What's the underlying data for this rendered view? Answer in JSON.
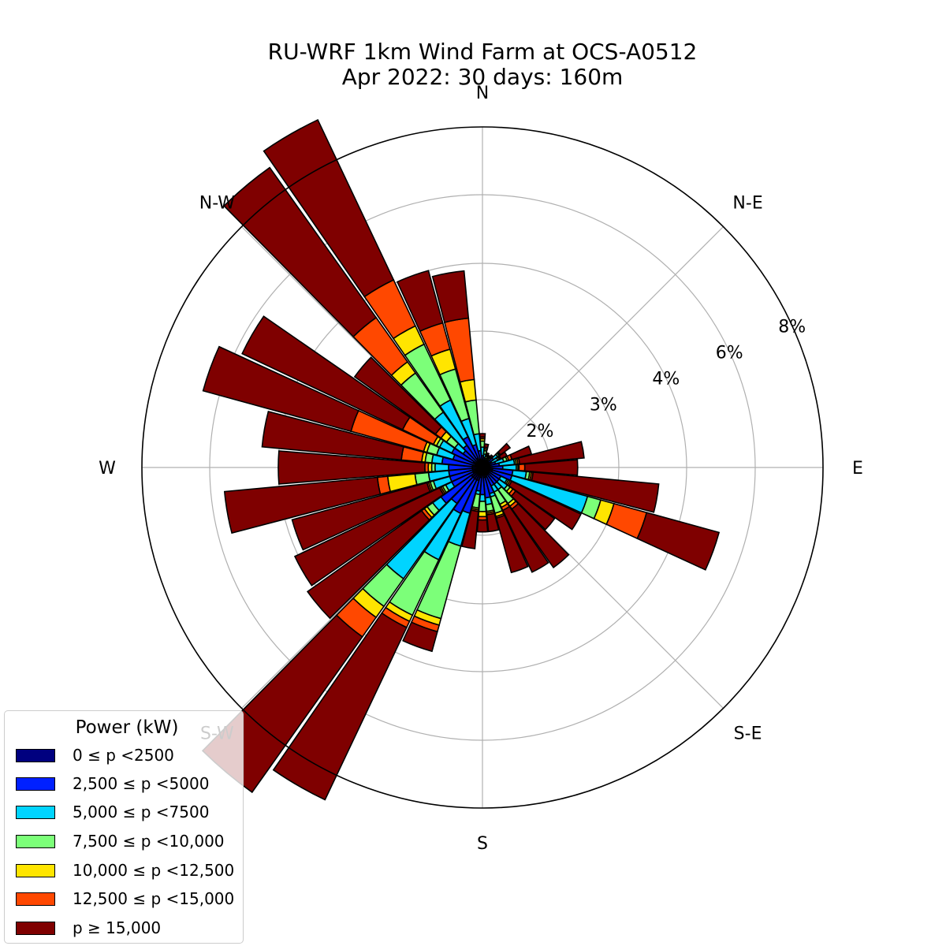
{
  "title_line1": "RU-WRF 1km Wind Farm at OCS-A0512",
  "title_line2": "Apr 2022: 30 days: 160m",
  "chart_data": {
    "type": "windrose",
    "direction_labels": [
      "N",
      "N-E",
      "E",
      "S-E",
      "S",
      "S-W",
      "W",
      "N-W"
    ],
    "radial_tick_labels": [
      "2%",
      "3%",
      "4%",
      "6%",
      "8%"
    ],
    "legend": {
      "title": "Power (kW)",
      "entries": [
        {
          "label": "0 ≤  p <2500",
          "color": "#00007f"
        },
        {
          "label": "2,500 ≤  p <5000",
          "color": "#0020ff"
        },
        {
          "label": "5,000 ≤  p <7500",
          "color": "#00d4ff"
        },
        {
          "label": "7,500 ≤  p <10,000",
          "color": "#7cff79"
        },
        {
          "label": "10,000 ≤  p <12,500",
          "color": "#ffe500"
        },
        {
          "label": "12,500 ≤  p <15,000",
          "color": "#ff4800"
        },
        {
          "label": "p  ≥ 15,000",
          "color": "#7f0000"
        }
      ]
    },
    "bin_width_deg": 10,
    "sectors": [
      {
        "direction": 0,
        "cumulative": [
          0.08,
          0.35,
          0.6,
          0.78,
          0.85,
          0.9,
          1.0
        ]
      },
      {
        "direction": 10,
        "cumulative": [
          0.1,
          0.3,
          0.4,
          0.5,
          0.55,
          0.6,
          0.7
        ]
      },
      {
        "direction": 20,
        "cumulative": [
          0.08,
          0.2,
          0.28,
          0.35,
          0.38,
          0.4,
          0.45
        ]
      },
      {
        "direction": 30,
        "cumulative": [
          0.08,
          0.18,
          0.25,
          0.3,
          0.33,
          0.36,
          0.4
        ]
      },
      {
        "direction": 40,
        "cumulative": [
          0.1,
          0.25,
          0.3,
          0.35,
          0.38,
          0.4,
          0.45
        ]
      },
      {
        "direction": 50,
        "cumulative": [
          0.1,
          0.4,
          0.55,
          0.6,
          0.63,
          0.65,
          1.0
        ]
      },
      {
        "direction": 60,
        "cumulative": [
          0.1,
          0.3,
          0.5,
          0.55,
          0.58,
          0.6,
          0.8
        ]
      },
      {
        "direction": 70,
        "cumulative": [
          0.15,
          0.4,
          0.65,
          0.75,
          0.8,
          0.9,
          1.5
        ]
      },
      {
        "direction": 80,
        "cumulative": [
          0.15,
          0.5,
          0.95,
          1.0,
          1.05,
          1.1,
          2.5
        ]
      },
      {
        "direction": 90,
        "cumulative": [
          0.2,
          0.6,
          1.0,
          1.05,
          1.08,
          1.25,
          2.4
        ]
      },
      {
        "direction": 100,
        "cumulative": [
          0.3,
          0.9,
          1.3,
          1.4,
          1.45,
          1.5,
          3.6
        ]
      },
      {
        "direction": 110,
        "cumulative": [
          0.3,
          0.9,
          2.6,
          2.8,
          3.0,
          3.5,
          5.2
        ]
      },
      {
        "direction": 120,
        "cumulative": [
          0.15,
          0.6,
          0.8,
          0.85,
          0.9,
          0.95,
          2.6
        ]
      },
      {
        "direction": 130,
        "cumulative": [
          0.2,
          0.6,
          0.9,
          1.0,
          1.1,
          1.2,
          2.3
        ]
      },
      {
        "direction": 140,
        "cumulative": [
          0.25,
          0.6,
          0.8,
          1.3,
          1.4,
          1.5,
          2.8
        ]
      },
      {
        "direction": 150,
        "cumulative": [
          0.25,
          0.6,
          0.8,
          1.2,
          1.3,
          1.4,
          2.7
        ]
      },
      {
        "direction": 160,
        "cumulative": [
          0.3,
          0.8,
          0.9,
          1.4,
          1.5,
          1.55,
          2.6
        ]
      },
      {
        "direction": 170,
        "cumulative": [
          0.3,
          0.9,
          1.1,
          1.3,
          1.35,
          1.4,
          1.9
        ]
      },
      {
        "direction": 180,
        "cumulative": [
          0.2,
          0.8,
          1.0,
          1.3,
          1.45,
          1.55,
          1.9
        ]
      },
      {
        "direction": 190,
        "cumulative": [
          0.3,
          0.7,
          0.8,
          1.2,
          1.25,
          1.3,
          2.2
        ]
      },
      {
        "direction": 200,
        "cumulative": [
          0.4,
          1.4,
          2.2,
          3.3,
          3.4,
          3.5,
          3.8
        ]
      },
      {
        "direction": 210,
        "cumulative": [
          0.4,
          1.5,
          2.5,
          3.4,
          3.5,
          3.6,
          8.8
        ]
      },
      {
        "direction": 220,
        "cumulative": [
          0.4,
          1.3,
          3.0,
          3.5,
          3.7,
          4.1,
          9.7
        ]
      },
      {
        "direction": 230,
        "cumulative": [
          0.4,
          1.5,
          1.8,
          2.0,
          2.05,
          2.1,
          4.3
        ]
      },
      {
        "direction": 240,
        "cumulative": [
          0.3,
          1.0,
          1.2,
          1.3,
          1.35,
          1.4,
          4.1
        ]
      },
      {
        "direction": 250,
        "cumulative": [
          0.3,
          1.0,
          1.5,
          1.6,
          1.65,
          1.7,
          3.9
        ]
      },
      {
        "direction": 260,
        "cumulative": [
          0.3,
          1.0,
          1.6,
          2.0,
          2.4,
          2.55,
          5.6
        ]
      },
      {
        "direction": 270,
        "cumulative": [
          0.3,
          1.0,
          1.4,
          1.5,
          1.6,
          1.7,
          4.0
        ]
      },
      {
        "direction": 280,
        "cumulative": [
          0.3,
          1.2,
          1.5,
          1.7,
          1.8,
          2.2,
          4.5
        ]
      },
      {
        "direction": 290,
        "cumulative": [
          0.2,
          0.9,
          1.4,
          1.7,
          1.8,
          3.0,
          6.5
        ]
      },
      {
        "direction": 300,
        "cumulative": [
          0.3,
          1.0,
          1.4,
          1.5,
          1.6,
          2.3,
          5.8
        ]
      },
      {
        "direction": 310,
        "cumulative": [
          0.2,
          0.7,
          1.0,
          1.3,
          1.5,
          1.7,
          3.3
        ]
      },
      {
        "direction": 320,
        "cumulative": [
          0.2,
          0.8,
          2.0,
          2.7,
          2.9,
          3.7,
          8.8
        ]
      },
      {
        "direction": 330,
        "cumulative": [
          0.3,
          1.0,
          2.1,
          3.0,
          3.3,
          4.1,
          9.3
        ]
      },
      {
        "direction": 340,
        "cumulative": [
          0.25,
          0.7,
          1.5,
          2.5,
          2.8,
          3.2,
          4.0
        ]
      },
      {
        "direction": 350,
        "cumulative": [
          0.15,
          0.5,
          1.0,
          2.0,
          2.3,
          3.2,
          3.9
        ]
      }
    ]
  }
}
